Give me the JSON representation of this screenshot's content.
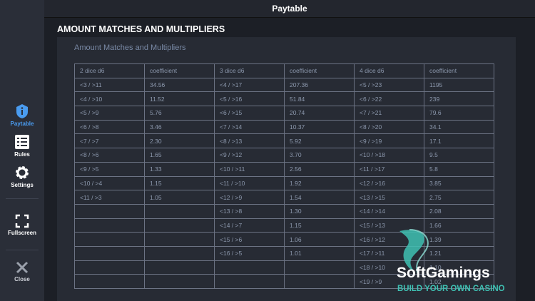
{
  "header": {
    "title": "Paytable"
  },
  "sidebar": {
    "items": [
      "Paytable",
      "Rules",
      "Settings",
      "Fullscreen",
      "Close"
    ]
  },
  "section": {
    "heading": "AMOUNT MATCHES AND MULTIPLIERS",
    "panel_title": "Amount Matches and Multipliers"
  },
  "table": {
    "columns": [
      "2 dice d6",
      "coefficient",
      "3 dice d6",
      "coefficient",
      "4 dice d6",
      "coefficient"
    ],
    "rows": [
      [
        "<3 / >11",
        "34.56",
        "<4 / >17",
        "207.36",
        "<5 / >23",
        "1195"
      ],
      [
        "<4 / >10",
        "11.52",
        "<5 / >16",
        "51.84",
        "<6 / >22",
        "239"
      ],
      [
        "<5 / >9",
        "5.76",
        "<6 / >15",
        "20.74",
        "<7 / >21",
        "79.6"
      ],
      [
        "<6 / >8",
        "3.46",
        "<7 / >14",
        "10.37",
        "<8 / >20",
        "34.1"
      ],
      [
        "<7 / >7",
        "2.30",
        "<8 / >13",
        "5.92",
        "<9 / >19",
        "17.1"
      ],
      [
        "<8 / >6",
        "1.65",
        "<9 / >12",
        "3.70",
        "<10 / >18",
        "9.5"
      ],
      [
        "<9 / >5",
        "1.33",
        "<10 / >11",
        "2.56",
        "<11 / >17",
        "5.8"
      ],
      [
        "<10 / >4",
        "1.15",
        "<11 / >10",
        "1.92",
        "<12 / >16",
        "3.85"
      ],
      [
        "<11 / >3",
        "1.05",
        "<12 / >9",
        "1.54",
        "<13 / >15",
        "2.75"
      ],
      [
        null,
        null,
        "<13 / >8",
        "1.30",
        "<14 / >14",
        "2.08"
      ],
      [
        null,
        null,
        "<14 / >7",
        "1.15",
        "<15 / >13",
        "1.66"
      ],
      [
        null,
        null,
        "<15 / >6",
        "1.06",
        "<16 / >12",
        "1.39"
      ],
      [
        null,
        null,
        "<16 / >5",
        "1.01",
        "<17 / >11",
        "1.21"
      ],
      [
        null,
        null,
        null,
        null,
        "<18 / >10",
        "1.10"
      ],
      [
        null,
        null,
        null,
        null,
        "<19 / >9",
        "1.02"
      ]
    ]
  },
  "watermark": {
    "brand": "SoftGamings",
    "tagline": "BUILD YOUR OWN CASINO"
  }
}
